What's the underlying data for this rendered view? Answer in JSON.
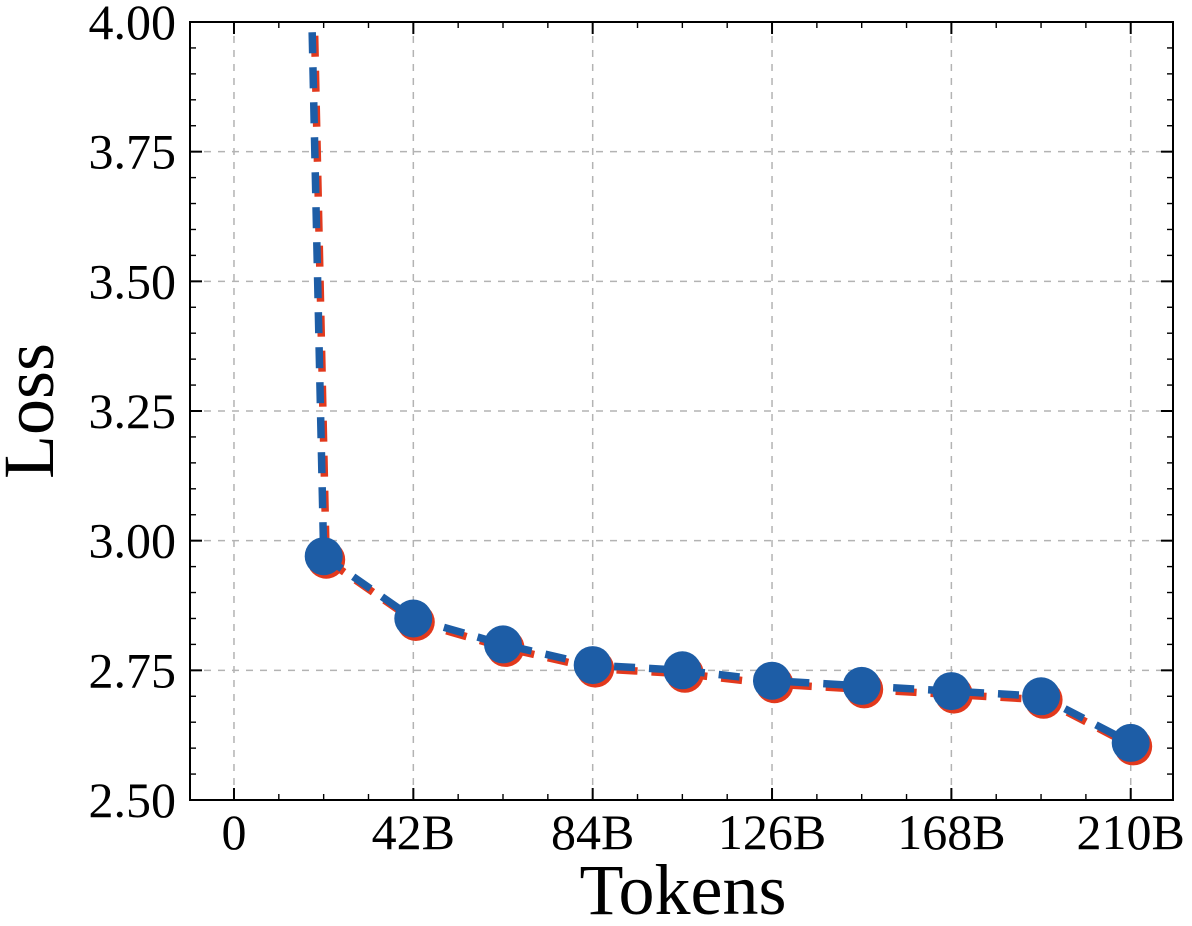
{
  "chart_data": {
    "type": "line",
    "title": "",
    "xlabel": "Tokens",
    "ylabel": "Loss",
    "xlim_b": [
      -10.3,
      219.9
    ],
    "ylim": [
      2.5,
      4.0
    ],
    "x_major_ticks_b": [
      0,
      42,
      84,
      126,
      168,
      210
    ],
    "x_tick_labels": [
      "0",
      "42B",
      "84B",
      "126B",
      "168B",
      "210B"
    ],
    "x_minor_step_b": 10.5,
    "y_major_ticks": [
      2.5,
      2.75,
      3.0,
      3.25,
      3.5,
      3.75,
      4.0
    ],
    "y_tick_labels": [
      "2.50",
      "2.75",
      "3.00",
      "3.25",
      "3.50",
      "3.75",
      "4.00"
    ],
    "y_minor_step": 0.05,
    "grid": {
      "show": true,
      "style": "dashed",
      "color": "#b3b3b3"
    },
    "legend": {
      "show": false
    },
    "axes_color": "#000000",
    "background": "#ffffff",
    "series": [
      {
        "name": "loss-curve-red-underlay",
        "underlay": true,
        "color": "#e2391d",
        "line_style": "dashed",
        "marker": "circle",
        "note": "nearly identical curve drawn beneath the blue one; visible only as a thin red fringe on the lower-right edge of dashes and markers",
        "x_b": [
          21,
          42,
          63,
          84,
          105,
          126,
          147,
          168,
          189,
          210
        ],
        "y": [
          2.97,
          2.85,
          2.8,
          2.76,
          2.75,
          2.73,
          2.72,
          2.71,
          2.7,
          2.61
        ],
        "offscreen_entry": {
          "x_b": 17.6,
          "y": 4.25
        }
      },
      {
        "name": "loss-curve-blue",
        "underlay": false,
        "color": "#1d5da6",
        "line_style": "dashed",
        "marker": "circle",
        "x_b": [
          21,
          42,
          63,
          84,
          105,
          126,
          147,
          168,
          189,
          210
        ],
        "y": [
          2.97,
          2.85,
          2.8,
          2.76,
          2.75,
          2.73,
          2.72,
          2.71,
          2.7,
          2.61
        ],
        "offscreen_entry": {
          "x_b": 17.6,
          "y": 4.25
        }
      }
    ]
  }
}
